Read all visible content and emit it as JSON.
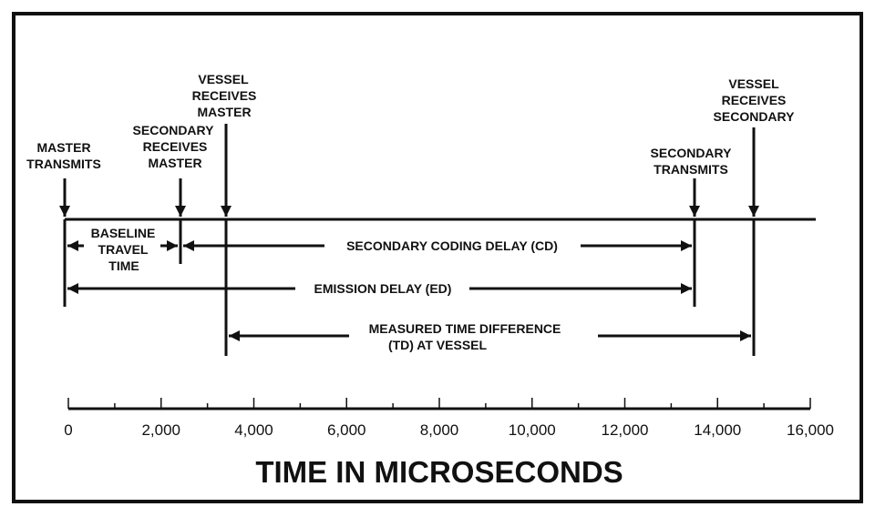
{
  "events": [
    {
      "id": "master-transmits",
      "lines": [
        "MASTER",
        "TRANSMITS"
      ]
    },
    {
      "id": "secondary-receives-master",
      "lines": [
        "SECONDARY",
        "RECEIVES",
        "MASTER"
      ]
    },
    {
      "id": "vessel-receives-master",
      "lines": [
        "VESSEL",
        "RECEIVES",
        "MASTER"
      ]
    },
    {
      "id": "secondary-transmits",
      "lines": [
        "SECONDARY",
        "TRANSMITS"
      ]
    },
    {
      "id": "vessel-receives-secondary",
      "lines": [
        "VESSEL",
        "RECEIVES",
        "SECONDARY"
      ]
    }
  ],
  "intervals": {
    "baseline": [
      "BASELINE",
      "TRAVEL",
      "TIME"
    ],
    "coding_delay": "SECONDARY CODING DELAY (CD)",
    "emission_delay": "EMISSION DELAY (ED)",
    "time_difference": [
      "MEASURED TIME DIFFERENCE",
      "(TD) AT VESSEL"
    ]
  },
  "axis": {
    "ticks": [
      "0",
      "2,000",
      "4,000",
      "6,000",
      "8,000",
      "10,000",
      "12,000",
      "14,000",
      "16,000"
    ],
    "title": "TIME IN MICROSECONDS"
  }
}
